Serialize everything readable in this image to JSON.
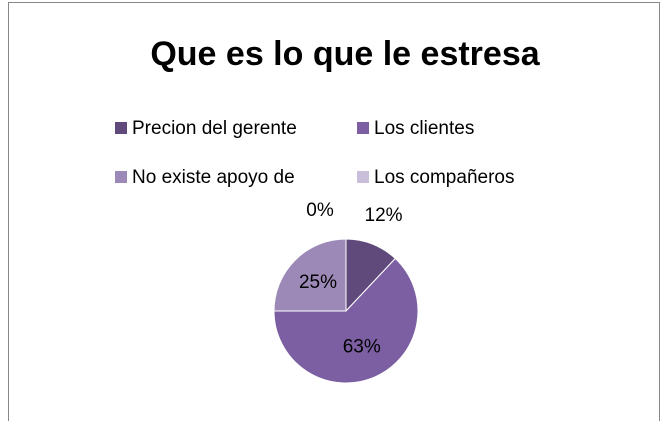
{
  "chart_data": {
    "type": "pie",
    "title": "Que es lo que le estresa",
    "categories": [
      "Precion del gerente",
      "Los clientes",
      "No existe apoyo de",
      "Los compañeros"
    ],
    "values": [
      12,
      63,
      25,
      0
    ],
    "value_labels": [
      "12%",
      "63%",
      "25%",
      "0%"
    ],
    "colors": [
      "#604a7b",
      "#7b5fa2",
      "#9d89b8",
      "#c9bfd8"
    ],
    "legend": "top"
  }
}
